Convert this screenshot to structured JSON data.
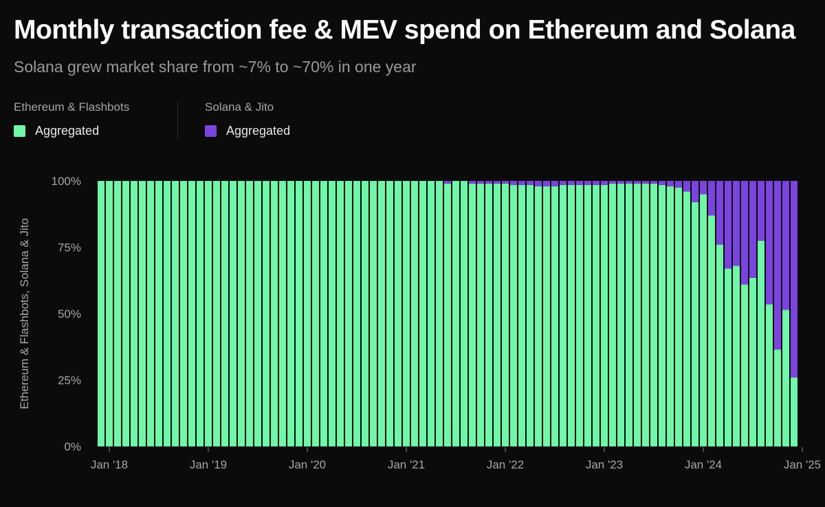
{
  "header": {
    "title": "Monthly transaction fee & MEV spend on Ethereum and Solana",
    "subtitle": "Solana grew market share from ~7% to ~70% in one year"
  },
  "legend": [
    {
      "group": "Ethereum & Flashbots",
      "label": "Aggregated",
      "color": "#6ff6a8"
    },
    {
      "group": "Solana & Jito",
      "label": "Aggregated",
      "color": "#7b44de"
    }
  ],
  "chart_data": {
    "type": "bar",
    "stacked": true,
    "percent_stacked": true,
    "ylabel": "Ethereum & Flashbots, Solana & Jito",
    "ylim": [
      0,
      100
    ],
    "y_ticks": [
      "0%",
      "25%",
      "50%",
      "75%",
      "100%"
    ],
    "x_tick_labels": [
      "Jan '18",
      "Jan '19",
      "Jan '20",
      "Jan '21",
      "Jan '22",
      "Jan '23",
      "Jan '24",
      "Jan '25"
    ],
    "x_tick_indices": [
      1,
      13,
      25,
      37,
      49,
      61,
      73,
      85
    ],
    "series": [
      {
        "name": "Ethereum & Flashbots",
        "color": "#6ff6a8",
        "values": [
          100,
          100,
          100,
          100,
          100,
          100,
          100,
          100,
          100,
          100,
          100,
          100,
          100,
          100,
          100,
          100,
          100,
          100,
          100,
          100,
          100,
          100,
          100,
          100,
          100,
          100,
          100,
          100,
          100,
          100,
          100,
          100,
          100,
          100,
          100,
          100,
          100,
          100,
          100,
          100,
          100,
          100,
          99,
          100,
          100,
          99,
          99,
          99,
          99,
          99,
          98.5,
          98.5,
          98.5,
          98,
          98,
          98,
          98.5,
          98.5,
          98.5,
          98.5,
          98.5,
          98.5,
          99,
          99,
          99,
          99,
          99,
          99,
          98.5,
          98,
          97.5,
          96,
          92,
          95,
          87,
          76,
          67,
          68,
          61,
          63.5,
          77.5,
          53.5,
          36.5,
          51.5,
          26
        ]
      },
      {
        "name": "Solana & Jito",
        "color": "#7b44de",
        "values": [
          0,
          0,
          0,
          0,
          0,
          0,
          0,
          0,
          0,
          0,
          0,
          0,
          0,
          0,
          0,
          0,
          0,
          0,
          0,
          0,
          0,
          0,
          0,
          0,
          0,
          0,
          0,
          0,
          0,
          0,
          0,
          0,
          0,
          0,
          0,
          0,
          0,
          0,
          0,
          0,
          0,
          0,
          1,
          0,
          0,
          1,
          1,
          1,
          1,
          1,
          1.5,
          1.5,
          1.5,
          2,
          2,
          2,
          1.5,
          1.5,
          1.5,
          1.5,
          1.5,
          1.5,
          1,
          1,
          1,
          1,
          1,
          1,
          1.5,
          2,
          2.5,
          4,
          8,
          5,
          13,
          24,
          33,
          32,
          39,
          36.5,
          22.5,
          46.5,
          63.5,
          48.5,
          74
        ]
      }
    ]
  }
}
